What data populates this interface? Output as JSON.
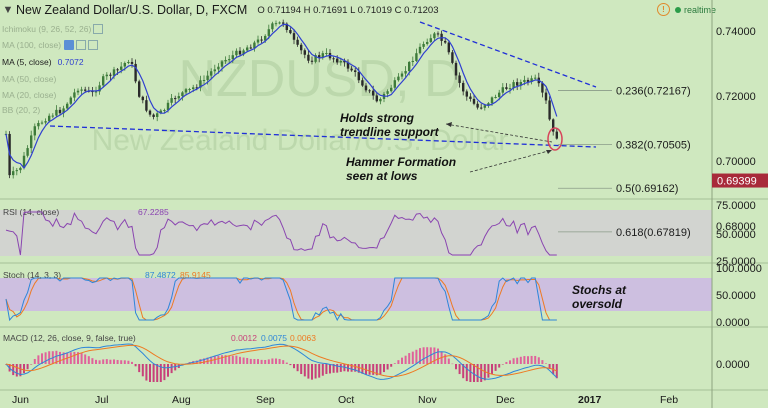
{
  "header": {
    "symbol_title": "New Zealand Dollar/U.S. Dollar, D, FXCM",
    "ohlc": "O 0.71194 H 0.71691 L 0.71019 C 0.71203",
    "realtime_label": "realtime"
  },
  "price_legends": [
    {
      "label": "Ichimoku (9, 26, 52, 26)",
      "faded": true
    },
    {
      "label": "MA (100, close)",
      "faded": true
    },
    {
      "label": "MA (5, close)",
      "value": "0.7072",
      "faded": false
    },
    {
      "label": "MA (50, close)",
      "faded": true
    },
    {
      "label": "MA (20, close)",
      "faded": true
    },
    {
      "label": "BB (20, 2)",
      "faded": true
    }
  ],
  "annotations": {
    "support": "Holds strong trendline support",
    "hammer": "Hammer Formation seen at lows",
    "stochs": "Stochs at oversold"
  },
  "watermark": {
    "symbol": "NZDUSD, D",
    "name": "New Zealand Dollar/U.S. Dollar"
  },
  "price_axis": {
    "ticks": [
      "0.74000",
      "0.72000",
      "0.70000",
      "0.68000"
    ],
    "current_price": "0.69399"
  },
  "fib_levels": [
    {
      "label": "0.236(0.72167)",
      "value": 0.72167
    },
    {
      "label": "0.382(0.70505)",
      "value": 0.70505
    },
    {
      "label": "0.5(0.69162)",
      "value": 0.69162
    },
    {
      "label": "0.618(0.67819)",
      "value": 0.67819
    }
  ],
  "rsi": {
    "legend": "RSI (14, close)",
    "value": "67.2285",
    "axis_ticks": [
      "75.0000",
      "50.0000",
      "25.0000"
    ]
  },
  "stoch": {
    "legend": "Stoch (14, 3, 3)",
    "k_value": "87.4872",
    "d_value": "85.9145",
    "axis_ticks": [
      "100.0000",
      "50.0000",
      "0.0000"
    ]
  },
  "macd": {
    "legend": "MACD (12, 26, close, 9, false, true)",
    "hist_value": "0.0012",
    "macd_value": "0.0075",
    "signal_value": "0.0063",
    "axis_ticks": [
      "0.0000"
    ]
  },
  "time_axis": [
    "Jun",
    "Jul",
    "Aug",
    "Sep",
    "Oct",
    "Nov",
    "Dec",
    "2017",
    "Feb"
  ],
  "colors": {
    "bull": "#3d7a3a",
    "bear": "#2a2a2a",
    "ma5": "#2f3fd0",
    "trendline": "#1f2fd8",
    "rsi_line": "#8a45b0",
    "stoch_k": "#2e86d9",
    "stoch_d": "#ee7a22",
    "macd_line": "#2e86d9",
    "signal_line": "#ee7a22",
    "hist_up": "#e0619a",
    "hist_down": "#c8407a"
  }
}
